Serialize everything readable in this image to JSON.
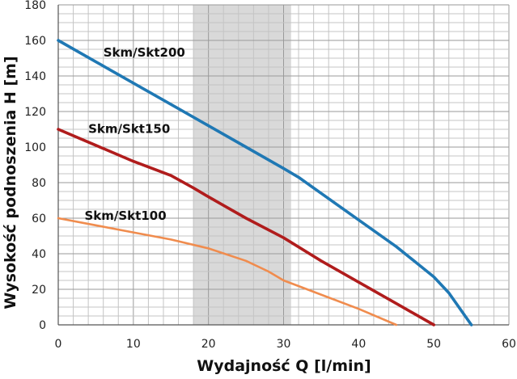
{
  "chart_data": {
    "type": "line",
    "title": "",
    "xlabel": "Wydajność Q [l/min]",
    "ylabel": "Wysokość podnoszenia H [m]",
    "xlim": [
      0,
      60
    ],
    "ylim": [
      0,
      180
    ],
    "x_ticks": [
      0,
      10,
      20,
      30,
      40,
      50,
      60
    ],
    "y_ticks": [
      0,
      20,
      40,
      60,
      80,
      100,
      120,
      140,
      160,
      180
    ],
    "grid": true,
    "legend": "labels placed next to curves",
    "highlight_band": {
      "x_from": 18,
      "x_to": 31,
      "color": "#d9d9d9"
    },
    "series": [
      {
        "name": "Skm/Skt200",
        "color": "#1f78b4",
        "label_at": [
          6,
          151
        ],
        "points": [
          [
            0,
            160
          ],
          [
            5,
            148
          ],
          [
            10,
            136
          ],
          [
            15,
            124
          ],
          [
            20,
            112
          ],
          [
            25,
            100
          ],
          [
            30,
            88
          ],
          [
            32,
            83
          ],
          [
            35,
            74
          ],
          [
            40,
            59
          ],
          [
            45,
            44
          ],
          [
            50,
            27
          ],
          [
            52,
            18
          ],
          [
            55,
            0
          ]
        ]
      },
      {
        "name": "Skm/Skt150",
        "color": "#b01c1c",
        "label_at": [
          4,
          108
        ],
        "points": [
          [
            0,
            110
          ],
          [
            5,
            101
          ],
          [
            10,
            92
          ],
          [
            15,
            84
          ],
          [
            18,
            77
          ],
          [
            20,
            72
          ],
          [
            25,
            60
          ],
          [
            30,
            49
          ],
          [
            35,
            36
          ],
          [
            40,
            24
          ],
          [
            45,
            12
          ],
          [
            50,
            0
          ]
        ]
      },
      {
        "name": "Skm/Skt100",
        "color": "#f08c4e",
        "label_at": [
          3.5,
          59
        ],
        "points": [
          [
            0,
            60
          ],
          [
            5,
            56
          ],
          [
            10,
            52
          ],
          [
            15,
            48
          ],
          [
            20,
            43
          ],
          [
            25,
            36
          ],
          [
            28,
            30
          ],
          [
            30,
            25
          ],
          [
            35,
            17
          ],
          [
            40,
            9
          ],
          [
            45,
            0
          ]
        ]
      }
    ]
  }
}
